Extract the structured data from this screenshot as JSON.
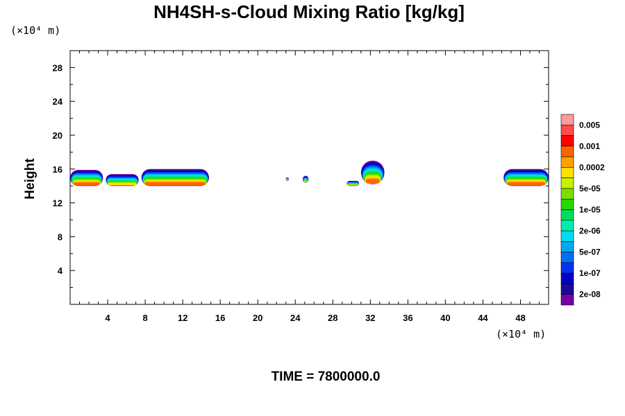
{
  "chart_data": {
    "type": "heatmap",
    "title": "NH4SH-s-Cloud Mixing Ratio [kg/kg]",
    "ylabel": "Height",
    "x_unit": "(×10⁴ m)",
    "y_unit": "(×10⁴ m)",
    "xlim": [
      0,
      51
    ],
    "ylim": [
      0,
      30
    ],
    "x_ticks": [
      4,
      8,
      12,
      16,
      20,
      24,
      28,
      32,
      36,
      40,
      44,
      48
    ],
    "y_ticks": [
      4,
      8,
      12,
      16,
      20,
      24,
      28
    ],
    "colorbar": {
      "labels": [
        "0.005",
        "0.001",
        "0.0002",
        "5e-05",
        "1e-05",
        "2e-06",
        "5e-07",
        "1e-07",
        "2e-08"
      ],
      "colors": [
        "#ff9a9a",
        "#ff4a4a",
        "#ff0000",
        "#ff6400",
        "#ffa000",
        "#ffe000",
        "#c8f000",
        "#78e000",
        "#28d800",
        "#00e060",
        "#00eeb0",
        "#00dcee",
        "#00a8f0",
        "#0070f0",
        "#0030f0",
        "#0000c8",
        "#1a0a9a",
        "#7800a8"
      ]
    },
    "clouds": [
      {
        "x": [
          0.0,
          3.5
        ],
        "y": [
          14.0,
          15.9
        ],
        "max_level": "1e-07"
      },
      {
        "x": [
          3.8,
          7.3
        ],
        "y": [
          14.0,
          15.4
        ],
        "max_level": "5e-07"
      },
      {
        "x": [
          7.6,
          14.8
        ],
        "y": [
          14.0,
          16.0
        ],
        "max_level": "1e-07"
      },
      {
        "x": [
          23.0,
          23.3
        ],
        "y": [
          14.6,
          15.0
        ],
        "max_level": "1e-07"
      },
      {
        "x": [
          24.8,
          25.4
        ],
        "y": [
          14.4,
          15.2
        ],
        "max_level": "5e-07"
      },
      {
        "x": [
          29.5,
          30.8
        ],
        "y": [
          14.0,
          14.6
        ],
        "max_level": "5e-07"
      },
      {
        "x": [
          31.0,
          33.5
        ],
        "y": [
          14.2,
          17.0
        ],
        "max_level": "1e-07"
      },
      {
        "x": [
          46.2,
          51.0
        ],
        "y": [
          14.0,
          16.0
        ],
        "max_level": "1e-07"
      }
    ]
  },
  "footer": {
    "time_label": "TIME = 7800000.0"
  }
}
